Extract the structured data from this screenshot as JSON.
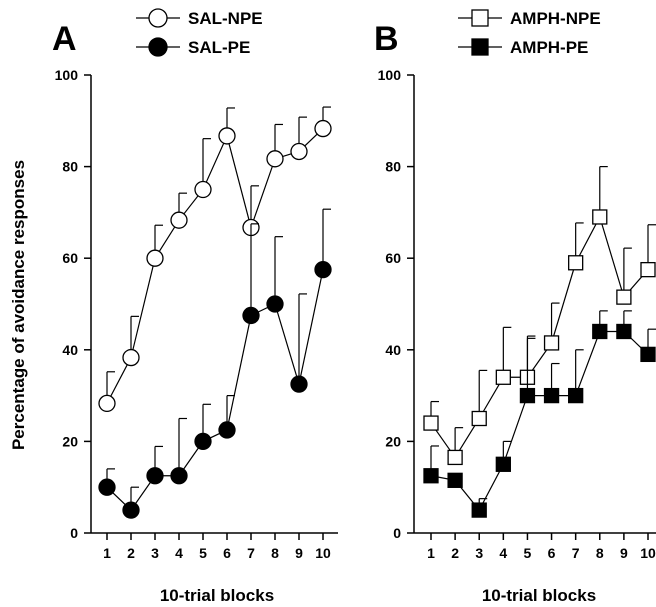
{
  "y_axis_label": "Percentage of avoidance responses",
  "chart_data": [
    {
      "type": "line",
      "panel": "A",
      "xlabel": "10-trial blocks",
      "ylabel": "Percentage of avoidance responses",
      "x": [
        1,
        2,
        3,
        4,
        5,
        6,
        7,
        8,
        9,
        10
      ],
      "x_ticks": [
        "1",
        "2",
        "3",
        "4",
        "5",
        "6",
        "7",
        "8",
        "9",
        "10"
      ],
      "ylim": [
        0,
        100
      ],
      "y_ticks": [
        "0",
        "20",
        "40",
        "60",
        "80",
        "100"
      ],
      "grid": false,
      "legend_position": "top",
      "series": [
        {
          "name": "SAL-NPE",
          "marker": "circle",
          "fill": "open",
          "values": [
            28.3,
            38.3,
            60.0,
            68.3,
            75.0,
            86.7,
            66.7,
            81.7,
            83.3,
            88.3
          ],
          "error": [
            6.9,
            9.0,
            7.2,
            5.9,
            11.1,
            6.1,
            9.1,
            7.5,
            7.5,
            4.7
          ]
        },
        {
          "name": "SAL-PE",
          "marker": "circle",
          "fill": "filled",
          "values": [
            10.0,
            5.0,
            12.5,
            12.5,
            20.0,
            22.5,
            47.5,
            50.0,
            32.5,
            57.5
          ],
          "error": [
            4.0,
            5.0,
            6.4,
            12.5,
            8.1,
            7.5,
            20.0,
            14.7,
            19.7,
            13.2
          ]
        }
      ]
    },
    {
      "type": "line",
      "panel": "B",
      "xlabel": "10-trial blocks",
      "ylabel": "",
      "x": [
        1,
        2,
        3,
        4,
        5,
        6,
        7,
        8,
        9,
        10
      ],
      "x_ticks": [
        "1",
        "2",
        "3",
        "4",
        "5",
        "6",
        "7",
        "8",
        "9",
        "10"
      ],
      "ylim": [
        0,
        100
      ],
      "y_ticks": [
        "0",
        "20",
        "40",
        "60",
        "80",
        "100"
      ],
      "grid": false,
      "legend_position": "top",
      "series": [
        {
          "name": "AMPH-NPE",
          "marker": "square",
          "fill": "open",
          "values": [
            24.0,
            16.5,
            25.0,
            34.0,
            34.0,
            41.5,
            59.0,
            69.0,
            51.5,
            57.5
          ],
          "error": [
            4.7,
            6.5,
            10.5,
            10.9,
            9.0,
            8.7,
            8.7,
            11.0,
            10.7,
            9.8
          ]
        },
        {
          "name": "AMPH-PE",
          "marker": "square",
          "fill": "filled",
          "values": [
            12.5,
            11.5,
            5.0,
            15.0,
            30.0,
            30.0,
            30.0,
            44.0,
            44.0,
            39.0
          ],
          "error": [
            6.5,
            0,
            2.5,
            5.0,
            12.5,
            7.0,
            10.0,
            4.5,
            4.5,
            5.5
          ]
        }
      ]
    }
  ]
}
